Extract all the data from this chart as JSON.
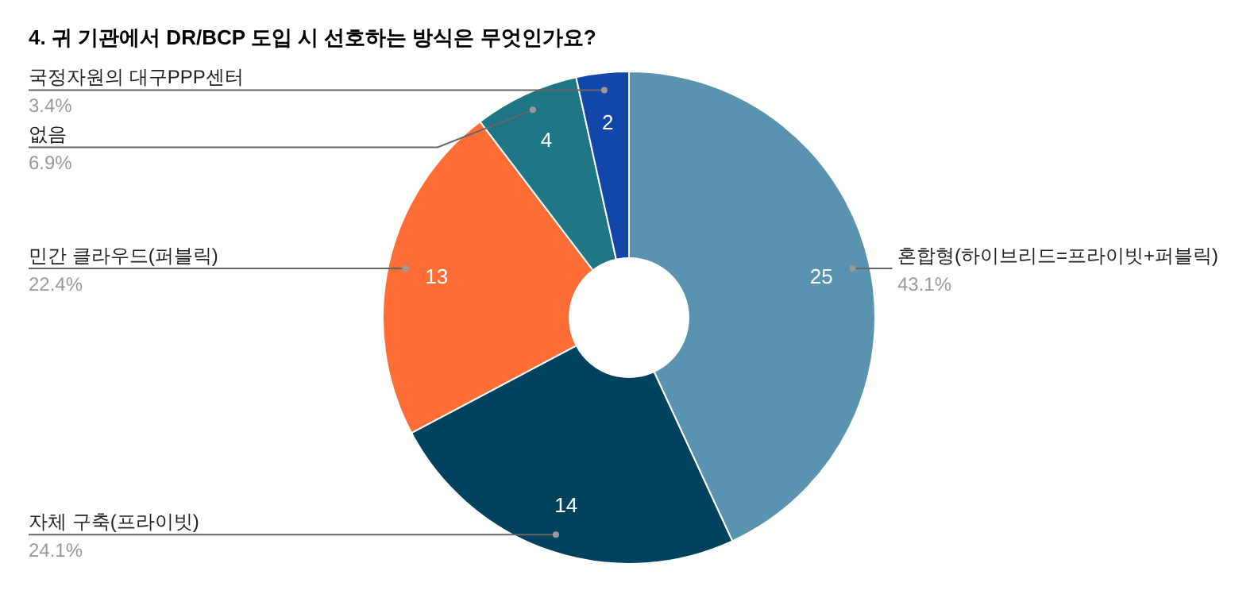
{
  "chart_data": {
    "type": "donut",
    "title": "4. 귀 기관에서 DR/BCP 도입 시 선호하는 방식은 무엇인가요?",
    "categories": [
      "혼합형(하이브리드=프라이빗+퍼블릭)",
      "자체 구축(프라이빗)",
      "민간 클라우드(퍼블릭)",
      "없음",
      "국정자원의 대구PPP센터"
    ],
    "values": [
      25,
      14,
      13,
      4,
      2
    ],
    "colors": [
      "#5a93b0",
      "#01425f",
      "#fe6d36",
      "#1f7785",
      "#1346a9"
    ],
    "value_labels": [
      "25",
      "14",
      "13",
      "4",
      "2"
    ],
    "annotations": [
      "43.1%",
      "24.1%",
      "22.4%",
      "6.9%",
      "3.4%"
    ]
  }
}
